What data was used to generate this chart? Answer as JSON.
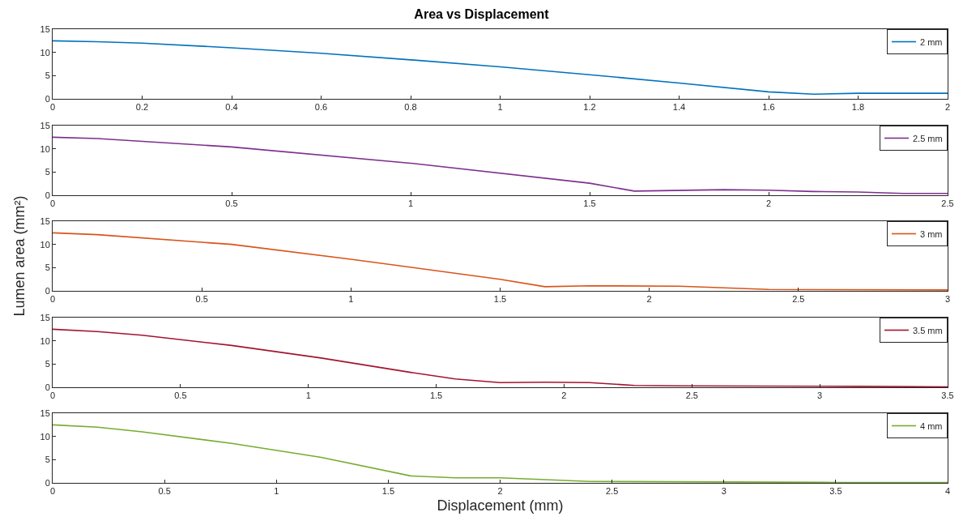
{
  "chart_data": [
    {
      "type": "line",
      "title": "Area vs Displacement",
      "x": [
        0,
        0.1,
        0.2,
        0.4,
        0.6,
        0.8,
        1.0,
        1.2,
        1.4,
        1.6,
        1.7,
        1.8,
        2.0
      ],
      "series": [
        {
          "name": "2 mm",
          "color": "#0072bd",
          "values": [
            12.5,
            12.3,
            12.0,
            11.0,
            9.8,
            8.4,
            6.9,
            5.2,
            3.4,
            1.5,
            1.0,
            1.2,
            1.2
          ]
        }
      ],
      "xlim": [
        0,
        2
      ],
      "ylim": [
        0,
        15
      ],
      "xticks": [
        0,
        0.2,
        0.4,
        0.6,
        0.8,
        1,
        1.2,
        1.4,
        1.6,
        1.8,
        2
      ],
      "yticks": [
        0,
        5,
        10,
        15
      ],
      "legend": "top right"
    },
    {
      "type": "line",
      "x": [
        0,
        0.125,
        0.5,
        1.0,
        1.5,
        1.625,
        1.875,
        2.0,
        2.125,
        2.25,
        2.375,
        2.5
      ],
      "series": [
        {
          "name": "2.5 mm",
          "color": "#7e2f8e",
          "values": [
            12.5,
            12.2,
            10.4,
            6.9,
            2.6,
            0.9,
            1.2,
            1.1,
            0.8,
            0.7,
            0.4,
            0.4
          ]
        }
      ],
      "xlim": [
        0,
        2.5
      ],
      "ylim": [
        0,
        15
      ],
      "xticks": [
        0,
        0.5,
        1,
        1.5,
        2,
        2.5
      ],
      "yticks": [
        0,
        5,
        10,
        15
      ],
      "legend": "top right"
    },
    {
      "type": "line",
      "ylabel": "Lumen area (mm²)",
      "x": [
        0,
        0.15,
        0.6,
        1.0,
        1.5,
        1.65,
        1.8,
        2.1,
        2.4,
        3.0
      ],
      "series": [
        {
          "name": "3 mm",
          "color": "#d95319",
          "values": [
            12.5,
            12.1,
            10.0,
            6.8,
            2.5,
            0.9,
            1.1,
            1.0,
            0.3,
            0.2
          ]
        }
      ],
      "xlim": [
        0,
        3
      ],
      "ylim": [
        0,
        15
      ],
      "xticks": [
        0,
        0.5,
        1,
        1.5,
        2,
        2.5,
        3
      ],
      "yticks": [
        0,
        5,
        10,
        15
      ],
      "legend": "top right"
    },
    {
      "type": "line",
      "x": [
        0,
        0.175,
        0.35,
        0.7,
        1.05,
        1.4,
        1.575,
        1.75,
        1.925,
        2.1,
        2.275,
        2.45,
        3.15,
        3.5
      ],
      "series": [
        {
          "name": "3.5 mm",
          "color": "#a2142f",
          "values": [
            12.5,
            12.0,
            11.2,
            9.0,
            6.3,
            3.2,
            1.8,
            1.0,
            1.1,
            1.0,
            0.4,
            0.3,
            0.2,
            0.1
          ]
        }
      ],
      "xlim": [
        0,
        3.5
      ],
      "ylim": [
        0,
        15
      ],
      "xticks": [
        0,
        0.5,
        1,
        1.5,
        2,
        2.5,
        3,
        3.5
      ],
      "yticks": [
        0,
        5,
        10,
        15
      ],
      "legend": "top right"
    },
    {
      "type": "line",
      "xlabel": "Displacement (mm)",
      "x": [
        0,
        0.2,
        0.4,
        0.8,
        1.2,
        1.6,
        1.8,
        2.0,
        2.4,
        3.0,
        3.5,
        4.0
      ],
      "series": [
        {
          "name": "4 mm",
          "color": "#77ac30",
          "values": [
            12.5,
            12.0,
            11.0,
            8.5,
            5.5,
            1.5,
            1.1,
            1.1,
            0.3,
            0.2,
            0.1,
            0.1
          ]
        }
      ],
      "xlim": [
        0,
        4
      ],
      "ylim": [
        0,
        15
      ],
      "xticks": [
        0,
        0.5,
        1,
        1.5,
        2,
        2.5,
        3,
        3.5,
        4
      ],
      "yticks": [
        0,
        5,
        10,
        15
      ],
      "legend": "top right"
    }
  ]
}
